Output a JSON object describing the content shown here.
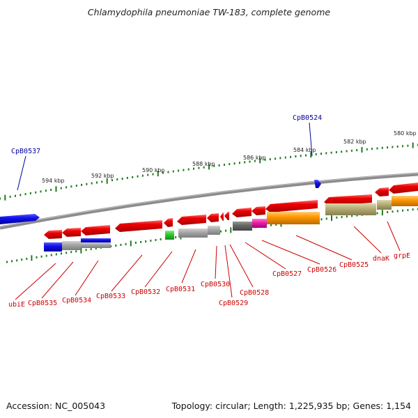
{
  "title": "Chlamydophila pneumoniae TW-183, complete genome",
  "accession": "Accession: NC_005043",
  "topology": "Topology: circular; Length: 1,225,935 bp; Genes: 1,154",
  "colors": {
    "backbone": "#8c8c8c",
    "tick": "#1e7a1e",
    "label_red": "#cc0000",
    "label_blue": "#000099",
    "gene_red": "#ee0000",
    "gene_blue": "#1010ee",
    "gene_gray": "#a8a8a8",
    "gene_darkgray": "#6a6a6a",
    "gene_green": "#33cc33",
    "gene_magenta": "#ee22aa",
    "gene_orange": "#ff9900",
    "gene_khaki": "#b9b07a"
  },
  "scale": {
    "tick_labels": [
      {
        "text": "594 kbp"
      },
      {
        "text": "592 kbp"
      },
      {
        "text": "590 kbp"
      },
      {
        "text": "588 kbp"
      },
      {
        "text": "586 kbp"
      },
      {
        "text": "584 kbp"
      },
      {
        "text": "582 kbp"
      },
      {
        "text": "580 kbp"
      }
    ]
  },
  "genes": [
    {
      "label": "CpB0537",
      "color": "label_blue"
    },
    {
      "label": "CpB0524",
      "color": "label_blue"
    },
    {
      "label": "ubiE",
      "color": "label_red"
    },
    {
      "label": "CpB0535",
      "color": "label_red"
    },
    {
      "label": "CpB0534",
      "color": "label_red"
    },
    {
      "label": "CpB0533",
      "color": "label_red"
    },
    {
      "label": "CpB0532",
      "color": "label_red"
    },
    {
      "label": "CpB0531",
      "color": "label_red"
    },
    {
      "label": "CpB0530",
      "color": "label_red"
    },
    {
      "label": "CpB0529",
      "color": "label_red"
    },
    {
      "label": "CpB0528",
      "color": "label_red"
    },
    {
      "label": "CpB0527",
      "color": "label_red"
    },
    {
      "label": "CpB0526",
      "color": "label_red"
    },
    {
      "label": "CpB0525",
      "color": "label_red"
    },
    {
      "label": "dnaK",
      "color": "label_red"
    },
    {
      "label": "grpE",
      "color": "label_red"
    }
  ]
}
